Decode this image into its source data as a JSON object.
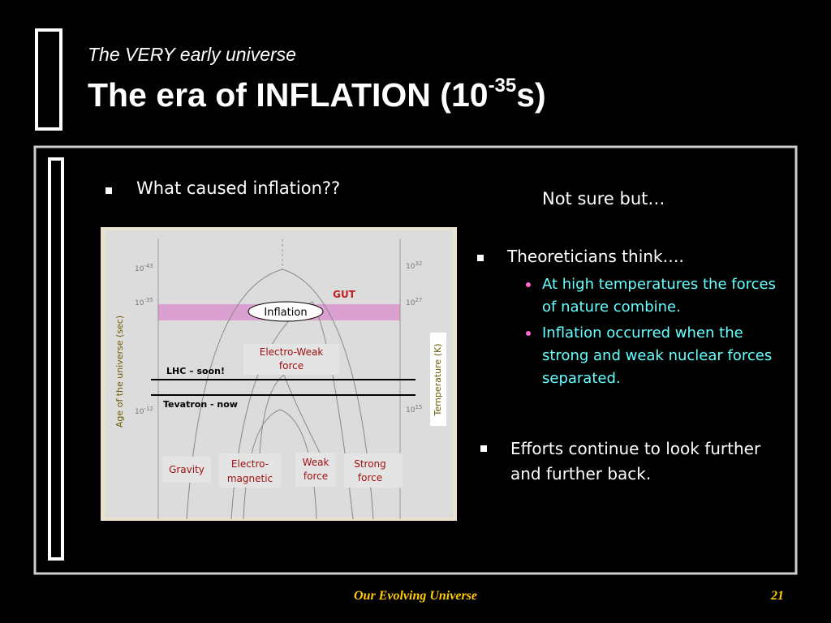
{
  "header": {
    "subtitle": "The VERY early universe",
    "title": {
      "text": "The era of INFLATION (10",
      "superscript": "-35",
      "suffix": "s)"
    }
  },
  "left_bullet": "What caused inflation??",
  "right": {
    "intro": "Not sure but…",
    "bullets": [
      {
        "text": "Theoreticians think….",
        "sub_bullets": [
          "At high temperatures the forces of nature combine.",
          "Inflation occurred when the strong and weak nuclear forces separated."
        ]
      },
      {
        "text": "Efforts continue to look further and further back."
      }
    ]
  },
  "figure": {
    "left_axis_label": "Age of the universe (sec)",
    "right_axis_label": "Temperature (K)",
    "left_ticks": [
      {
        "base": "10",
        "exponent": "-43"
      },
      {
        "base": "10",
        "exponent": "-35"
      },
      {
        "base": "10",
        "exponent": "-12"
      }
    ],
    "right_ticks": [
      {
        "base": "10",
        "exponent": "32"
      },
      {
        "base": "10",
        "exponent": "27"
      },
      {
        "base": "10",
        "exponent": "15"
      }
    ],
    "gut": "GUT",
    "inflation": "Inflation",
    "electro_weak": [
      "Electro-Weak",
      "force"
    ],
    "lhc": "LHC – soon!",
    "tevatron": "Tevatron - now",
    "forces": {
      "gravity": [
        "Gravity"
      ],
      "electromagnetic": [
        "Electro-",
        "magnetic"
      ],
      "weak": [
        "Weak",
        "force"
      ],
      "strong": [
        "Strong",
        "force"
      ]
    }
  },
  "footer": {
    "title": "Our Evolving Universe",
    "page": "21"
  }
}
